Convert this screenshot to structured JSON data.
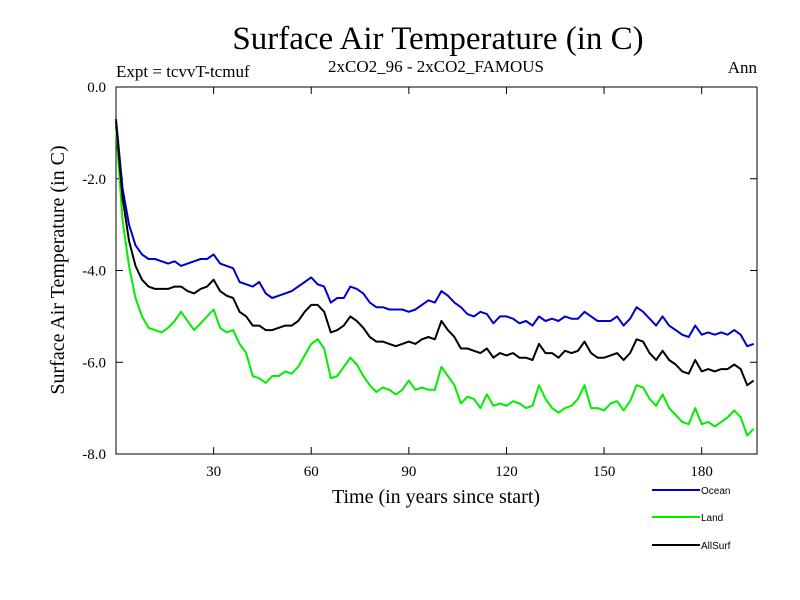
{
  "chart_data": {
    "type": "line",
    "title": "Surface Air Temperature (in C)",
    "subtitle_left": "Expt = tcvvT-tcmuf",
    "subtitle_center": "2xCO2_96 - 2xCO2_FAMOUS",
    "subtitle_right": "Ann",
    "xlabel": "Time (in years since start)",
    "ylabel": "Surface Air Temperature (in C)",
    "xlim": [
      0,
      197
    ],
    "ylim": [
      -8.0,
      0.0
    ],
    "x_ticks": [
      30,
      60,
      90,
      120,
      150,
      180
    ],
    "x_tick_labels": [
      "30",
      "60",
      "90",
      "120",
      "150",
      "180"
    ],
    "y_ticks": [
      0.0,
      -2.0,
      -4.0,
      -6.0,
      -8.0
    ],
    "y_tick_labels": [
      "0.0",
      "-2.0",
      "-4.0",
      "-6.0",
      "-8.0"
    ],
    "grid": false,
    "legend_position": "bottom-right",
    "x": [
      0,
      2,
      4,
      6,
      8,
      10,
      12,
      14,
      16,
      18,
      20,
      22,
      24,
      26,
      28,
      30,
      32,
      34,
      36,
      38,
      40,
      42,
      44,
      46,
      48,
      50,
      52,
      54,
      56,
      58,
      60,
      62,
      64,
      66,
      68,
      70,
      72,
      74,
      76,
      78,
      80,
      82,
      84,
      86,
      88,
      90,
      92,
      94,
      96,
      98,
      100,
      102,
      104,
      106,
      108,
      110,
      112,
      114,
      116,
      118,
      120,
      122,
      124,
      126,
      128,
      130,
      132,
      134,
      136,
      138,
      140,
      142,
      144,
      146,
      148,
      150,
      152,
      154,
      156,
      158,
      160,
      162,
      164,
      166,
      168,
      170,
      172,
      174,
      176,
      178,
      180,
      182,
      184,
      186,
      188,
      190,
      192,
      194,
      196
    ],
    "series": [
      {
        "name": "Ocean",
        "color": "#0000cc",
        "values": [
          -0.7,
          -2.2,
          -3.0,
          -3.45,
          -3.65,
          -3.75,
          -3.75,
          -3.8,
          -3.85,
          -3.8,
          -3.9,
          -3.85,
          -3.8,
          -3.75,
          -3.75,
          -3.65,
          -3.85,
          -3.9,
          -3.95,
          -4.25,
          -4.3,
          -4.35,
          -4.25,
          -4.5,
          -4.6,
          -4.55,
          -4.5,
          -4.45,
          -4.35,
          -4.25,
          -4.15,
          -4.3,
          -4.35,
          -4.7,
          -4.6,
          -4.6,
          -4.35,
          -4.4,
          -4.5,
          -4.7,
          -4.8,
          -4.8,
          -4.85,
          -4.85,
          -4.85,
          -4.9,
          -4.85,
          -4.75,
          -4.65,
          -4.7,
          -4.45,
          -4.55,
          -4.7,
          -4.8,
          -4.95,
          -5.0,
          -4.9,
          -4.95,
          -5.15,
          -5.0,
          -5.0,
          -5.05,
          -5.15,
          -5.1,
          -5.2,
          -5.0,
          -5.1,
          -5.05,
          -5.1,
          -5.0,
          -5.05,
          -5.05,
          -4.9,
          -5.0,
          -5.1,
          -5.1,
          -5.1,
          -5.0,
          -5.2,
          -5.05,
          -4.8,
          -4.9,
          -5.05,
          -5.2,
          -5.0,
          -5.2,
          -5.3,
          -5.4,
          -5.45,
          -5.2,
          -5.4,
          -5.35,
          -5.4,
          -5.35,
          -5.4,
          -5.3,
          -5.4,
          -5.65,
          -5.6
        ]
      },
      {
        "name": "Land",
        "color": "#00ee00",
        "values": [
          -0.85,
          -2.9,
          -3.9,
          -4.6,
          -5.0,
          -5.25,
          -5.3,
          -5.35,
          -5.25,
          -5.1,
          -4.9,
          -5.1,
          -5.3,
          -5.15,
          -5.0,
          -4.85,
          -5.25,
          -5.35,
          -5.3,
          -5.6,
          -5.8,
          -6.3,
          -6.35,
          -6.45,
          -6.3,
          -6.3,
          -6.2,
          -6.25,
          -6.1,
          -5.85,
          -5.6,
          -5.5,
          -5.7,
          -6.35,
          -6.3,
          -6.1,
          -5.9,
          -6.05,
          -6.3,
          -6.5,
          -6.65,
          -6.55,
          -6.6,
          -6.7,
          -6.6,
          -6.4,
          -6.6,
          -6.55,
          -6.6,
          -6.6,
          -6.1,
          -6.3,
          -6.5,
          -6.9,
          -6.75,
          -6.8,
          -7.0,
          -6.7,
          -6.95,
          -6.9,
          -6.95,
          -6.85,
          -6.9,
          -7.0,
          -6.95,
          -6.5,
          -6.8,
          -7.0,
          -7.1,
          -7.0,
          -6.95,
          -6.8,
          -6.5,
          -7.0,
          -7.0,
          -7.05,
          -6.9,
          -6.85,
          -7.05,
          -6.85,
          -6.5,
          -6.55,
          -6.8,
          -6.95,
          -6.7,
          -7.0,
          -7.15,
          -7.3,
          -7.35,
          -7.0,
          -7.35,
          -7.3,
          -7.4,
          -7.3,
          -7.2,
          -7.05,
          -7.2,
          -7.6,
          -7.45
        ]
      },
      {
        "name": "AllSurf",
        "color": "#000000",
        "values": [
          -0.75,
          -2.4,
          -3.35,
          -3.9,
          -4.2,
          -4.35,
          -4.4,
          -4.4,
          -4.4,
          -4.35,
          -4.35,
          -4.45,
          -4.5,
          -4.4,
          -4.35,
          -4.2,
          -4.45,
          -4.55,
          -4.6,
          -4.9,
          -5.0,
          -5.2,
          -5.2,
          -5.3,
          -5.3,
          -5.25,
          -5.2,
          -5.2,
          -5.1,
          -4.9,
          -4.75,
          -4.75,
          -4.9,
          -5.35,
          -5.3,
          -5.2,
          -5.0,
          -5.1,
          -5.25,
          -5.45,
          -5.55,
          -5.55,
          -5.6,
          -5.65,
          -5.6,
          -5.55,
          -5.6,
          -5.5,
          -5.45,
          -5.5,
          -5.1,
          -5.3,
          -5.45,
          -5.7,
          -5.7,
          -5.75,
          -5.8,
          -5.7,
          -5.9,
          -5.8,
          -5.85,
          -5.8,
          -5.9,
          -5.9,
          -5.95,
          -5.6,
          -5.8,
          -5.8,
          -5.9,
          -5.75,
          -5.8,
          -5.75,
          -5.55,
          -5.8,
          -5.9,
          -5.9,
          -5.85,
          -5.8,
          -5.95,
          -5.8,
          -5.5,
          -5.55,
          -5.8,
          -5.95,
          -5.75,
          -5.95,
          -6.05,
          -6.2,
          -6.25,
          -5.95,
          -6.2,
          -6.15,
          -6.2,
          -6.15,
          -6.15,
          -6.05,
          -6.15,
          -6.5,
          -6.4
        ]
      }
    ]
  }
}
